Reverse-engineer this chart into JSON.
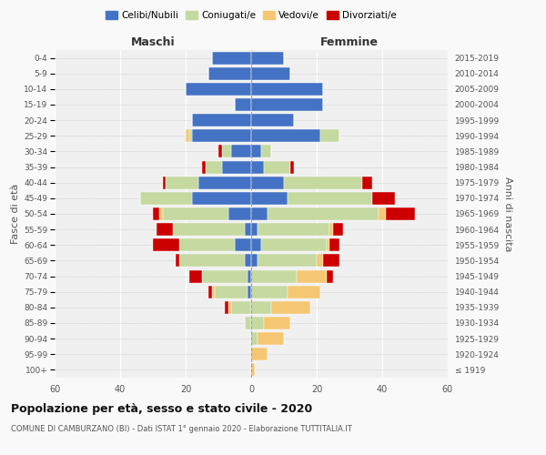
{
  "age_groups": [
    "100+",
    "95-99",
    "90-94",
    "85-89",
    "80-84",
    "75-79",
    "70-74",
    "65-69",
    "60-64",
    "55-59",
    "50-54",
    "45-49",
    "40-44",
    "35-39",
    "30-34",
    "25-29",
    "20-24",
    "15-19",
    "10-14",
    "5-9",
    "0-4"
  ],
  "birth_years": [
    "≤ 1919",
    "1920-1924",
    "1925-1929",
    "1930-1934",
    "1935-1939",
    "1940-1944",
    "1945-1949",
    "1950-1954",
    "1955-1959",
    "1960-1964",
    "1965-1969",
    "1970-1974",
    "1975-1979",
    "1980-1984",
    "1985-1989",
    "1990-1994",
    "1995-1999",
    "2000-2004",
    "2005-2009",
    "2010-2014",
    "2015-2019"
  ],
  "colors": {
    "celibi": "#4472C4",
    "coniugati": "#C5D9A0",
    "vedovi": "#F5C772",
    "divorziati": "#CC0000"
  },
  "male": {
    "celibi": [
      0,
      0,
      0,
      0,
      0,
      1,
      1,
      2,
      5,
      2,
      7,
      18,
      16,
      9,
      6,
      18,
      18,
      5,
      20,
      13,
      12
    ],
    "coniugati": [
      0,
      0,
      0,
      2,
      6,
      10,
      14,
      20,
      17,
      22,
      20,
      16,
      10,
      5,
      3,
      1,
      0,
      0,
      0,
      0,
      0
    ],
    "vedovi": [
      0,
      0,
      0,
      0,
      1,
      1,
      0,
      0,
      0,
      0,
      1,
      0,
      0,
      0,
      0,
      1,
      0,
      0,
      0,
      0,
      0
    ],
    "divorziati": [
      0,
      0,
      0,
      0,
      1,
      1,
      4,
      1,
      8,
      5,
      2,
      0,
      1,
      1,
      1,
      0,
      0,
      0,
      0,
      0,
      0
    ]
  },
  "female": {
    "celibi": [
      0,
      0,
      0,
      0,
      0,
      0,
      0,
      2,
      3,
      2,
      5,
      11,
      10,
      4,
      3,
      21,
      13,
      22,
      22,
      12,
      10
    ],
    "coniugati": [
      0,
      0,
      2,
      4,
      6,
      11,
      14,
      18,
      20,
      22,
      34,
      26,
      24,
      8,
      3,
      6,
      0,
      0,
      0,
      0,
      0
    ],
    "vedovi": [
      1,
      5,
      8,
      8,
      12,
      10,
      9,
      2,
      1,
      1,
      2,
      0,
      0,
      0,
      0,
      0,
      0,
      0,
      0,
      0,
      0
    ],
    "divorziati": [
      0,
      0,
      0,
      0,
      0,
      0,
      2,
      5,
      3,
      3,
      9,
      7,
      3,
      1,
      0,
      0,
      0,
      0,
      0,
      0,
      0
    ]
  },
  "xlim": 60,
  "title": "Popolazione per età, sesso e stato civile - 2020",
  "subtitle": "COMUNE DI CAMBURZANO (BI) - Dati ISTAT 1° gennaio 2020 - Elaborazione TUTTITALIA.IT",
  "ylabel_left": "Fasce di età",
  "ylabel_right": "Anni di nascita",
  "xlabel_left": "Maschi",
  "xlabel_right": "Femmine",
  "bg_color": "#f0f0f0",
  "grid_color": "#ffffff",
  "legend_labels": [
    "Celibi/Nubili",
    "Coniugati/e",
    "Vedovi/e",
    "Divorziati/e"
  ]
}
